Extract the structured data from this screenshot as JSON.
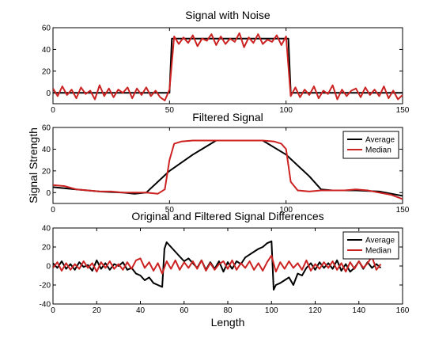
{
  "colors": {
    "series_black": "#000000",
    "series_red": "#cc2222"
  },
  "chart_data": [
    {
      "type": "line",
      "title": "Signal with Noise",
      "xlabel": "",
      "ylabel": "",
      "xlim": [
        0,
        150
      ],
      "ylim": [
        -10,
        60
      ],
      "xticks": [
        0,
        50,
        100,
        150
      ],
      "yticks": [
        0,
        20,
        40,
        60
      ],
      "legend": null,
      "series": [
        {
          "color": "#000000",
          "x": [
            0,
            50,
            51,
            101,
            102,
            150
          ],
          "y": [
            0,
            0,
            50,
            50,
            0,
            0
          ]
        },
        {
          "color": "#cc2222",
          "x": [
            0,
            2,
            4,
            6,
            8,
            10,
            12,
            14,
            16,
            18,
            20,
            22,
            24,
            26,
            28,
            30,
            32,
            34,
            36,
            38,
            40,
            42,
            44,
            46,
            48,
            50,
            52,
            54,
            56,
            58,
            60,
            62,
            64,
            66,
            68,
            70,
            72,
            74,
            76,
            78,
            80,
            82,
            84,
            86,
            88,
            90,
            92,
            94,
            96,
            98,
            100,
            102,
            104,
            106,
            108,
            110,
            112,
            114,
            116,
            118,
            120,
            122,
            124,
            126,
            128,
            130,
            132,
            134,
            136,
            138,
            140,
            142,
            144,
            146,
            148,
            150
          ],
          "y": [
            4,
            -3,
            6,
            -2,
            3,
            -5,
            5,
            -1,
            2,
            -6,
            7,
            -3,
            4,
            -4,
            3,
            0,
            5,
            -5,
            4,
            -2,
            5,
            -3,
            2,
            -4,
            -7,
            3,
            52,
            45,
            51,
            46,
            53,
            43,
            50,
            48,
            54,
            44,
            52,
            45,
            50,
            47,
            55,
            42,
            51,
            46,
            54,
            45,
            49,
            47,
            53,
            44,
            52,
            -3,
            5,
            -4,
            3,
            -2,
            6,
            -5,
            2,
            -1,
            7,
            -6,
            3,
            -3,
            2,
            4,
            -4,
            5,
            -2,
            3,
            -3,
            6,
            -5,
            2,
            -6,
            -2
          ]
        }
      ]
    },
    {
      "type": "line",
      "title": "Filtered Signal",
      "xlabel": "",
      "ylabel": "Signal Strength",
      "xlim": [
        0,
        150
      ],
      "ylim": [
        -10,
        60
      ],
      "xticks": [
        0,
        50,
        100,
        150
      ],
      "yticks": [
        0,
        20,
        40,
        60
      ],
      "legend": "top-right",
      "series": [
        {
          "name": "Average",
          "color": "#000000",
          "x": [
            0,
            10,
            20,
            30,
            35,
            40,
            50,
            60,
            70,
            80,
            90,
            100,
            110,
            115,
            120,
            130,
            140,
            150
          ],
          "y": [
            5,
            3,
            1,
            0,
            -1,
            0,
            20,
            35,
            48,
            48,
            48,
            35,
            15,
            3,
            2,
            2,
            1,
            -3
          ]
        },
        {
          "name": "Median",
          "color": "#cc2222",
          "x": [
            0,
            5,
            10,
            15,
            20,
            25,
            30,
            35,
            40,
            45,
            48,
            50,
            52,
            55,
            60,
            70,
            80,
            90,
            95,
            98,
            100,
            102,
            105,
            110,
            115,
            120,
            125,
            130,
            135,
            140,
            145,
            150
          ],
          "y": [
            7,
            6,
            3,
            2,
            1,
            1,
            0,
            0,
            0,
            -1,
            3,
            30,
            45,
            47,
            48,
            48,
            48,
            48,
            47,
            45,
            40,
            10,
            2,
            1,
            2,
            2,
            2,
            3,
            2,
            0,
            -2,
            -6
          ]
        }
      ]
    },
    {
      "type": "line",
      "title": "Original and Filtered Signal Differences",
      "xlabel": "Length",
      "ylabel": "",
      "xlim": [
        0,
        160
      ],
      "ylim": [
        -40,
        40
      ],
      "xticks": [
        0,
        20,
        40,
        60,
        80,
        100,
        120,
        140,
        160
      ],
      "yticks": [
        -40,
        -20,
        0,
        20,
        40
      ],
      "legend": "top-right",
      "series": [
        {
          "name": "Average",
          "color": "#000000",
          "x": [
            0,
            2,
            4,
            6,
            8,
            10,
            12,
            14,
            16,
            18,
            20,
            22,
            24,
            26,
            28,
            30,
            32,
            34,
            36,
            38,
            40,
            42,
            44,
            46,
            48,
            50,
            51,
            52,
            54,
            56,
            58,
            60,
            62,
            64,
            66,
            68,
            70,
            72,
            74,
            76,
            78,
            80,
            82,
            84,
            86,
            88,
            90,
            92,
            94,
            96,
            98,
            100,
            101,
            102,
            104,
            106,
            108,
            110,
            112,
            114,
            116,
            118,
            120,
            122,
            124,
            126,
            128,
            130,
            132,
            134,
            136,
            138,
            140,
            142,
            144,
            146,
            148,
            150
          ],
          "y": [
            3,
            -2,
            5,
            -3,
            2,
            -4,
            4,
            -1,
            1,
            -5,
            6,
            -3,
            3,
            -4,
            2,
            0,
            4,
            -4,
            -2,
            -8,
            -10,
            -15,
            -12,
            -18,
            -20,
            -22,
            18,
            25,
            20,
            15,
            10,
            5,
            8,
            3,
            -2,
            6,
            -4,
            4,
            -3,
            5,
            -6,
            4,
            -3,
            5,
            2,
            9,
            12,
            15,
            18,
            20,
            24,
            26,
            -25,
            -20,
            -18,
            -15,
            -12,
            -20,
            -8,
            -10,
            -2,
            3,
            -4,
            4,
            -2,
            3,
            -3,
            6,
            -5,
            2,
            -6,
            -2,
            5,
            -3,
            4,
            -2,
            2,
            -2
          ]
        },
        {
          "name": "Median",
          "color": "#cc2222",
          "x": [
            0,
            2,
            4,
            6,
            8,
            10,
            12,
            14,
            16,
            18,
            20,
            22,
            24,
            26,
            28,
            30,
            32,
            34,
            36,
            38,
            40,
            42,
            44,
            46,
            48,
            50,
            52,
            54,
            56,
            58,
            60,
            62,
            64,
            66,
            68,
            70,
            72,
            74,
            76,
            78,
            80,
            82,
            84,
            86,
            88,
            90,
            92,
            94,
            96,
            98,
            100,
            102,
            104,
            106,
            108,
            110,
            112,
            114,
            116,
            118,
            120,
            122,
            124,
            126,
            128,
            130,
            132,
            134,
            136,
            138,
            140,
            142,
            144,
            146,
            148,
            150
          ],
          "y": [
            -2,
            4,
            -5,
            3,
            -4,
            2,
            -3,
            5,
            -2,
            3,
            -6,
            4,
            -2,
            5,
            -3,
            2,
            -4,
            4,
            -3,
            6,
            8,
            -2,
            4,
            -5,
            3,
            -8,
            5,
            -3,
            6,
            -4,
            4,
            -2,
            5,
            -3,
            6,
            -5,
            3,
            -4,
            2,
            5,
            -3,
            6,
            -4,
            3,
            -2,
            5,
            -4,
            3,
            -5,
            4,
            11,
            -6,
            4,
            -3,
            5,
            -2,
            3,
            -4,
            6,
            -5,
            2,
            -3,
            4,
            -2,
            5,
            -4,
            3,
            -6,
            4,
            -3,
            5,
            -2,
            3,
            10,
            -4,
            2
          ]
        }
      ]
    }
  ]
}
